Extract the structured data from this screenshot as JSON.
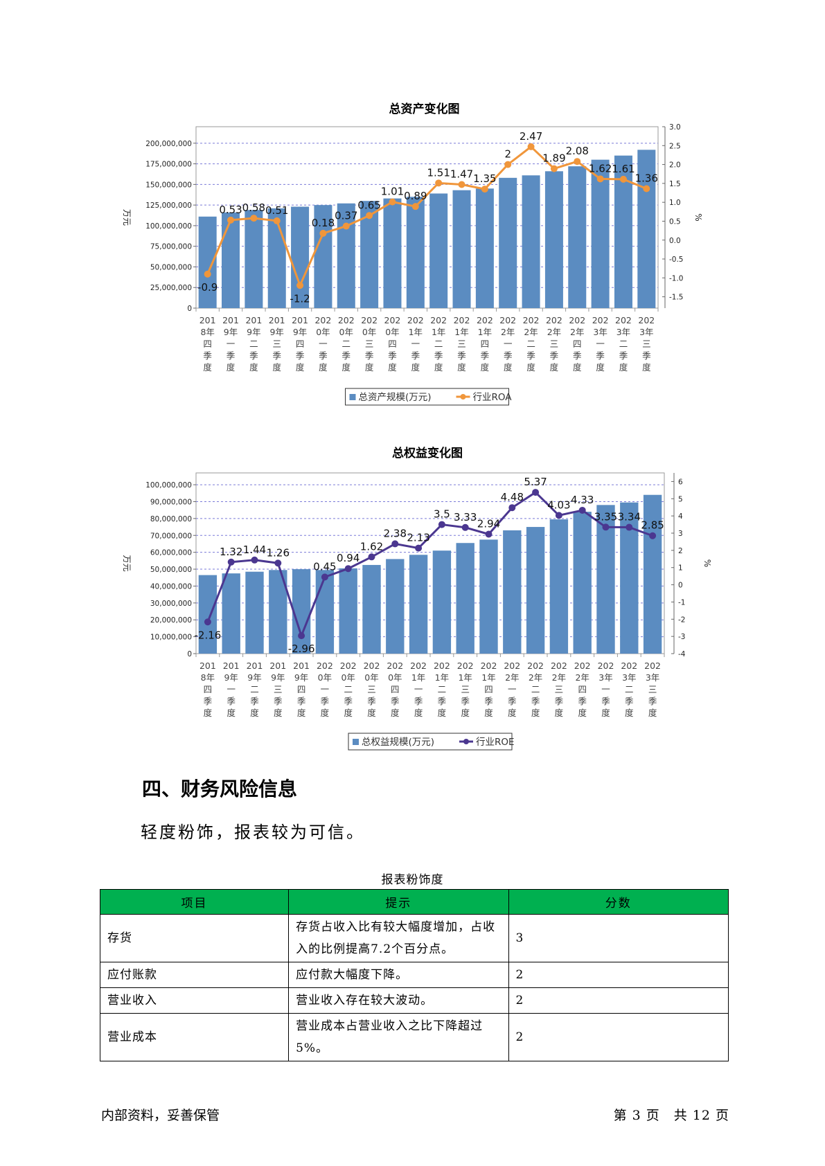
{
  "section_heading": "四、财务风险信息",
  "conclusion": "轻度粉饰，报表较为可信。",
  "chart_data": [
    {
      "type": "bar",
      "title": "总资产变化图",
      "categories": [
        "2018年四季度",
        "2019年一季度",
        "2019年二季度",
        "2019年三季度",
        "2019年四季度",
        "2020年一季度",
        "2020年二季度",
        "2020年三季度",
        "2020年四季度",
        "2021年一季度",
        "2021年二季度",
        "2021年三季度",
        "2021年四季度",
        "2022年一季度",
        "2022年二季度",
        "2022年三季度",
        "2022年四季度",
        "2023年一季度",
        "2023年二季度",
        "2023年三季度"
      ],
      "y_left_label": "万元",
      "y_right_label": "%",
      "y_left_ticks": [
        "200,000,000",
        "175,000,000",
        "150,000,000",
        "125,000,000",
        "100,000,000",
        "75,000,000",
        "50,000,000",
        "25,000,000",
        "0"
      ],
      "y_right_ticks": [
        "3.0",
        "2.5",
        "2.0",
        "1.5",
        "1.0",
        "0.5",
        "0.0",
        "-0.5",
        "-1.0",
        "-1.5"
      ],
      "ylim_left": [
        0,
        220000000
      ],
      "ylim_right": [
        -1.8,
        3.0
      ],
      "series": [
        {
          "name": "总资产规模(万元)",
          "type": "bar",
          "color": "#5b8cc1",
          "values": [
            111000000,
            116000000,
            119000000,
            121000000,
            123000000,
            125000000,
            127000000,
            130000000,
            133000000,
            135000000,
            139000000,
            143000000,
            145000000,
            158000000,
            161000000,
            166000000,
            172000000,
            180000000,
            185000000,
            192000000
          ]
        },
        {
          "name": "行业ROA",
          "type": "line",
          "axis": "right",
          "color": "#f0963b",
          "values": [
            -0.9,
            0.53,
            0.58,
            0.51,
            -1.2,
            0.18,
            0.37,
            0.65,
            1.01,
            0.89,
            1.51,
            1.47,
            1.35,
            2.0,
            2.47,
            1.89,
            2.08,
            1.62,
            1.61,
            1.36
          ],
          "labels": [
            "-0.9",
            "0.53",
            "0.58",
            "0.51",
            "-1.2",
            "0.18",
            "0.37",
            "0.65",
            "1.01",
            "0.89",
            "1.51",
            "1.47",
            "1.35",
            "2",
            "2.47",
            "1.89",
            "2.08",
            "1.62",
            "1.61",
            "1.36"
          ]
        }
      ],
      "legend_position": "bottom",
      "grid": true
    },
    {
      "type": "bar",
      "title": "总权益变化图",
      "categories": [
        "2018年四季度",
        "2019年一季度",
        "2019年二季度",
        "2019年三季度",
        "2019年四季度",
        "2020年一季度",
        "2020年二季度",
        "2020年三季度",
        "2020年四季度",
        "2021年一季度",
        "2021年二季度",
        "2021年三季度",
        "2021年四季度",
        "2022年一季度",
        "2022年二季度",
        "2022年三季度",
        "2022年四季度",
        "2023年一季度",
        "2023年二季度",
        "2023年三季度"
      ],
      "y_left_label": "万元",
      "y_right_label": "%",
      "y_left_ticks": [
        "100,000,000",
        "90,000,000",
        "80,000,000",
        "70,000,000",
        "60,000,000",
        "50,000,000",
        "40,000,000",
        "30,000,000",
        "20,000,000",
        "10,000,000",
        "0"
      ],
      "y_right_ticks": [
        "6",
        "5",
        "4",
        "3",
        "2",
        "1",
        "0",
        "-1",
        "-2",
        "-3",
        "-4"
      ],
      "ylim_left": [
        0,
        107000000
      ],
      "ylim_right": [
        -4,
        6.5
      ],
      "series": [
        {
          "name": "总权益规模(万元)",
          "type": "bar",
          "color": "#5b8cc1",
          "values": [
            46500000,
            47500000,
            48500000,
            49500000,
            50000000,
            49500000,
            50500000,
            52500000,
            56000000,
            58500000,
            61000000,
            65500000,
            67500000,
            73000000,
            75000000,
            79500000,
            84000000,
            88000000,
            89500000,
            94000000
          ]
        },
        {
          "name": "行业ROE",
          "type": "line",
          "axis": "right",
          "color": "#4b3790",
          "values": [
            -2.16,
            1.32,
            1.44,
            1.26,
            -2.96,
            0.45,
            0.94,
            1.62,
            2.38,
            2.13,
            3.5,
            3.33,
            2.94,
            4.48,
            5.37,
            4.03,
            4.33,
            3.35,
            3.34,
            2.85
          ],
          "labels": [
            "-2.16",
            "1.32",
            "1.44",
            "1.26",
            "-2.96",
            "0.45",
            "0.94",
            "1.62",
            "2.38",
            "2.13",
            "3.5",
            "3.33",
            "2.94",
            "4.48",
            "5.37",
            "4.03",
            "4.33",
            "3.35",
            "3.34",
            "2.85"
          ]
        }
      ],
      "legend_position": "bottom",
      "grid": true
    }
  ],
  "table": {
    "caption": "报表粉饰度",
    "headers": [
      "项目",
      "提示",
      "分数"
    ],
    "rows": [
      {
        "item": "存货",
        "hint": "存货占收入比有较大幅度增加，占收入的比例提高7.2个百分点。",
        "score": "3"
      },
      {
        "item": "应付账款",
        "hint": "应付款大幅度下降。",
        "score": "2"
      },
      {
        "item": "营业收入",
        "hint": "营业收入存在较大波动。",
        "score": "2"
      },
      {
        "item": "营业成本",
        "hint": "营业成本占营业收入之比下降超过5%。",
        "score": "2"
      }
    ]
  },
  "footer": {
    "left": "内部资料，妥善保管",
    "right": "第 3 页　共 12 页"
  }
}
